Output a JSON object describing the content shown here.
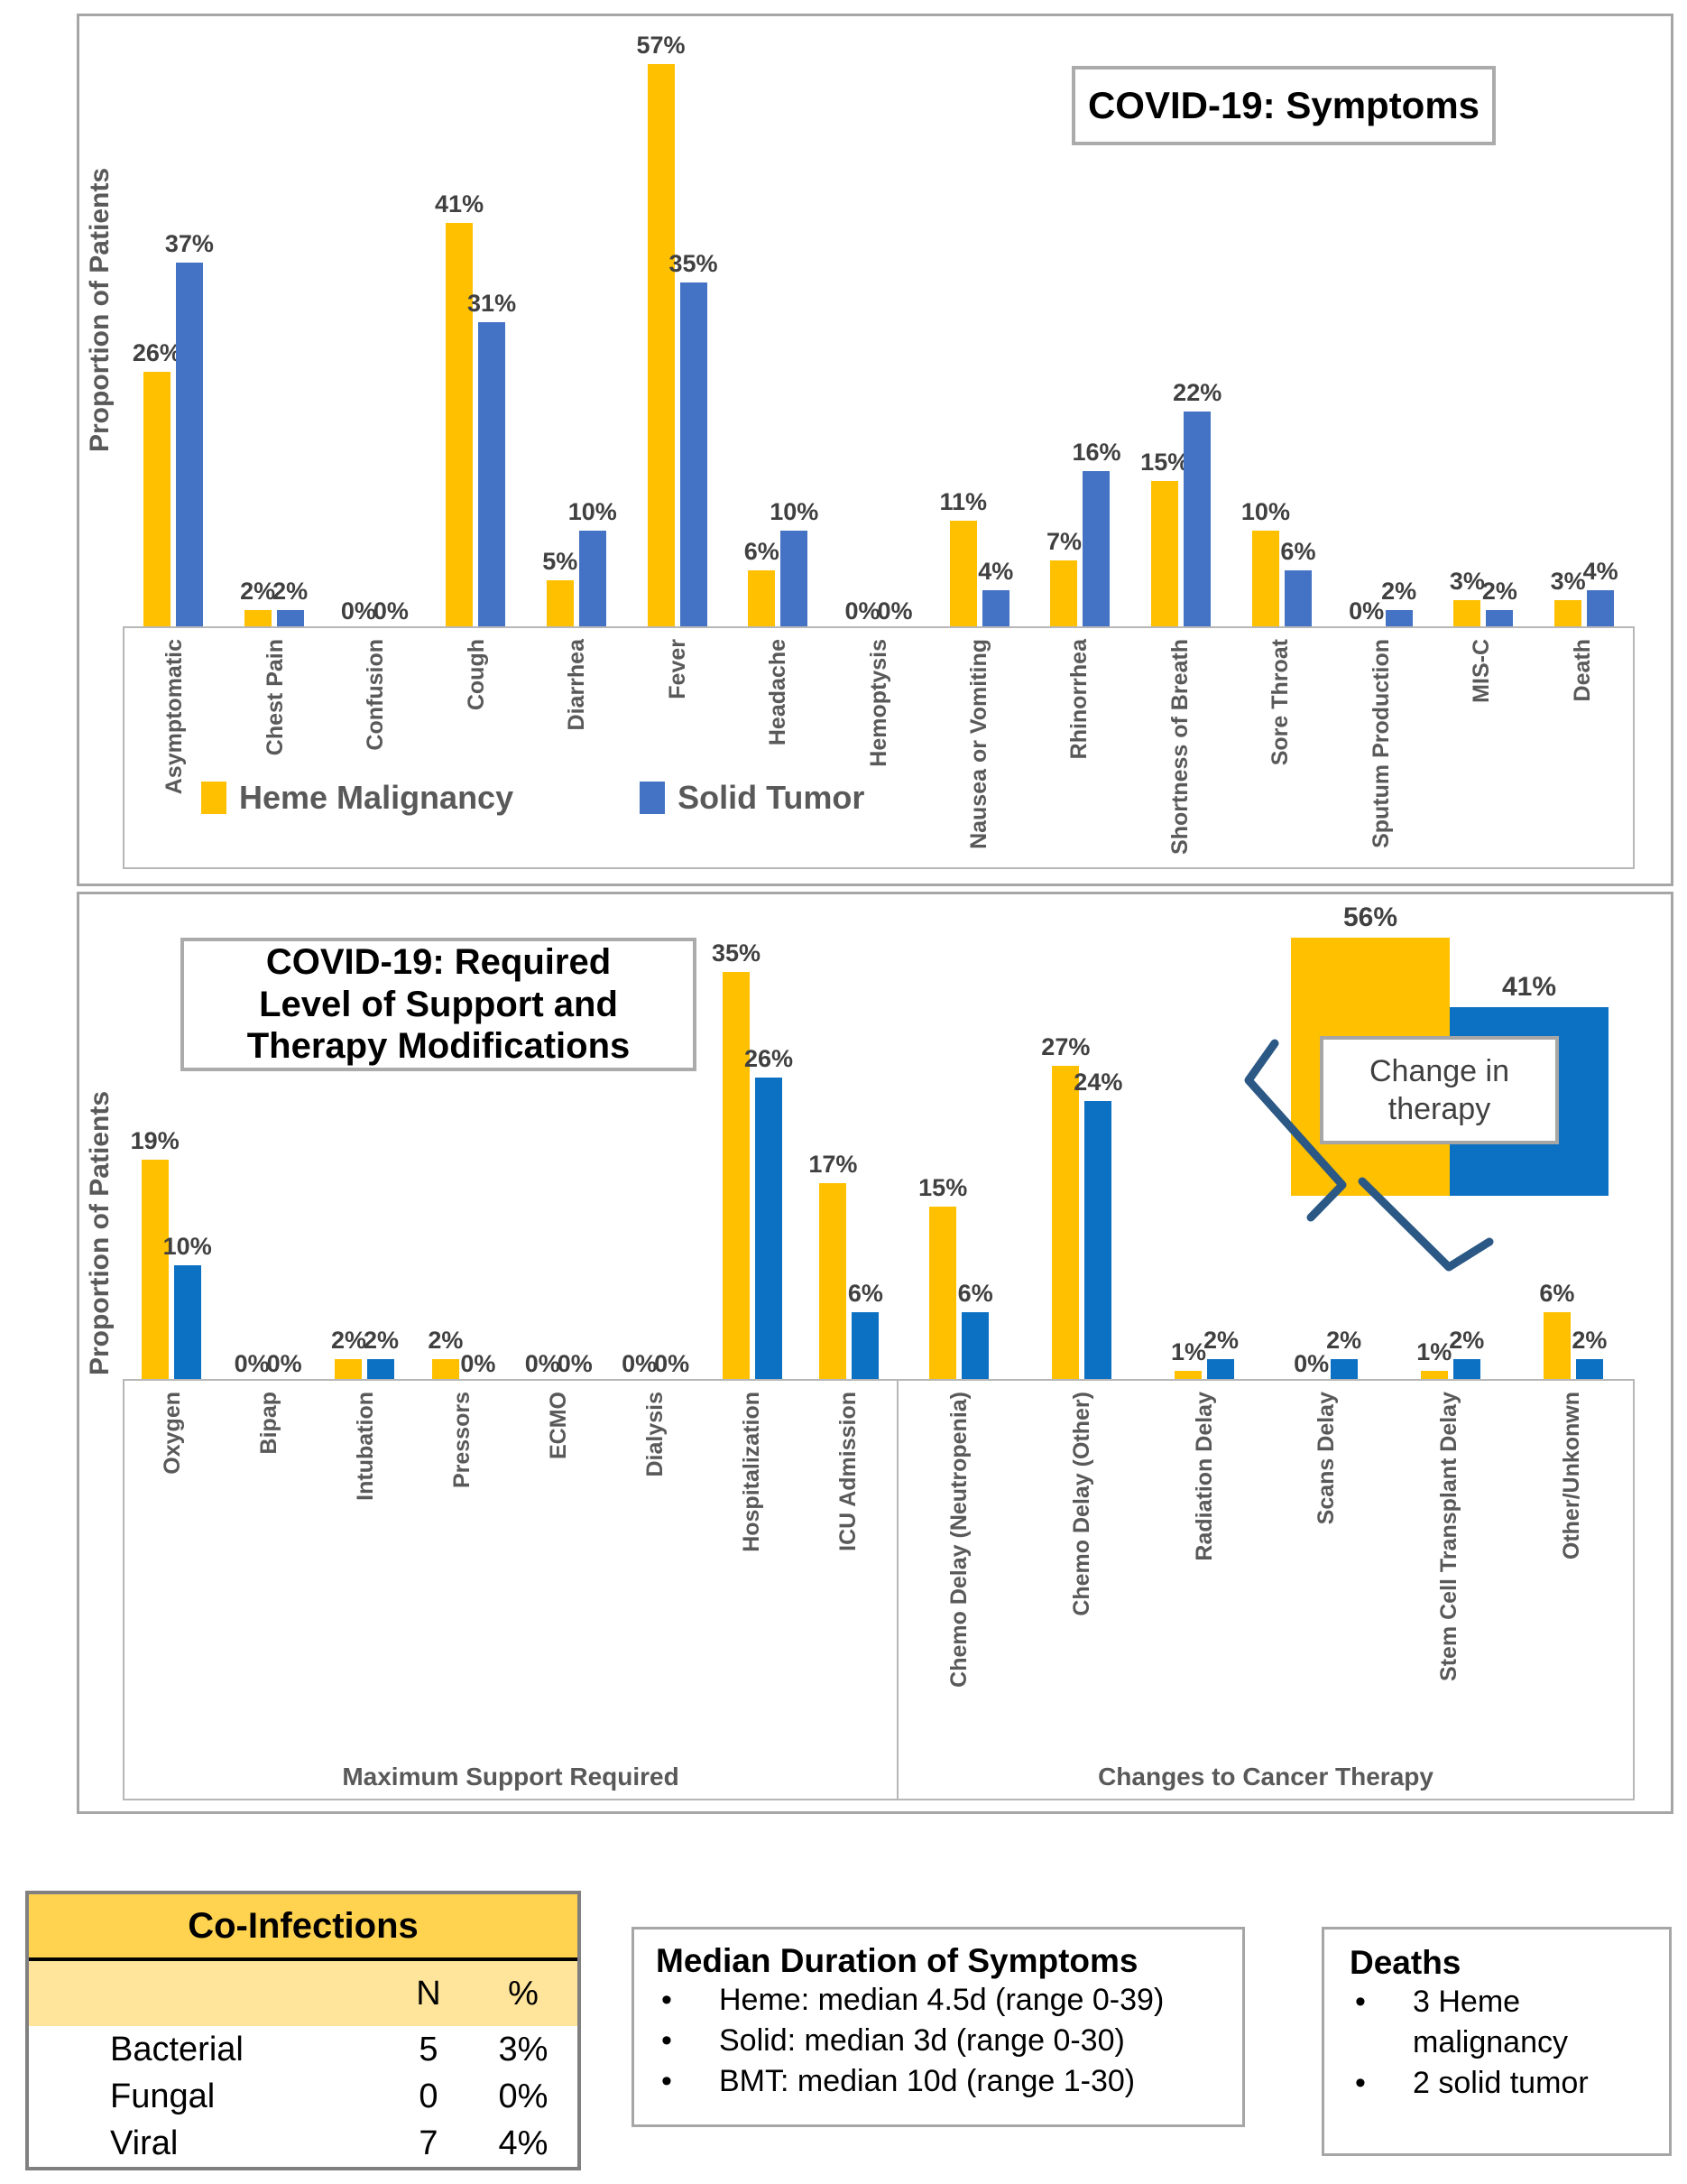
{
  "chart_data": [
    {
      "id": "symptoms",
      "type": "bar",
      "title": "COVID-19: Symptoms",
      "ylabel": "Proportion of Patients",
      "ylim": [
        0,
        60
      ],
      "grid": false,
      "legend_position": "inside-bottom-left",
      "categories": [
        "Asymptomatic",
        "Chest Pain",
        "Confusion",
        "Cough",
        "Diarrhea",
        "Fever",
        "Headache",
        "Hemoptysis",
        "Nausea or Vomiting",
        "Rhinorrhea",
        "Shortness of Breath",
        "Sore Throat",
        "Sputum Production",
        "MIS-C",
        "Death"
      ],
      "series": [
        {
          "name": "Heme Malignancy",
          "color": "#FFC000",
          "values": [
            26,
            2,
            0,
            41,
            5,
            57,
            6,
            0,
            11,
            7,
            15,
            10,
            0,
            3,
            3
          ]
        },
        {
          "name": "Solid Tumor",
          "color": "#4472C4",
          "values": [
            37,
            2,
            0,
            31,
            10,
            35,
            10,
            0,
            4,
            16,
            22,
            6,
            2,
            2,
            4
          ]
        }
      ]
    },
    {
      "id": "support",
      "type": "bar",
      "title": "COVID-19: Required Level of Support and Therapy Modifications",
      "ylabel": "Proportion of Patients",
      "ylim": [
        0,
        40
      ],
      "grid": false,
      "groups": [
        {
          "label": "Maximum Support Required",
          "span": 8
        },
        {
          "label": "Changes to Cancer Therapy",
          "span": 6
        }
      ],
      "categories": [
        "Oxygen",
        "Bipap",
        "Intubation",
        "Pressors",
        "ECMO",
        "Dialysis",
        "Hospitalization",
        "ICU Admission",
        "Chemo Delay (Neutropenia)",
        "Chemo Delay (Other)",
        "Radiation Delay",
        "Scans Delay",
        "Stem Cell Transplant Delay",
        "Other/Unkonwn"
      ],
      "series": [
        {
          "name": "Heme Malignancy",
          "color": "#FFC000",
          "values": [
            19,
            0,
            2,
            2,
            0,
            0,
            35,
            17,
            15,
            27,
            1,
            0,
            1,
            6
          ]
        },
        {
          "name": "Solid Tumor",
          "color": "#0C71C3",
          "values": [
            10,
            0,
            2,
            0,
            0,
            0,
            26,
            6,
            6,
            24,
            2,
            2,
            2,
            2
          ]
        }
      ],
      "inset": {
        "label": "Change in therapy",
        "series": [
          {
            "name": "Heme Malignancy",
            "color": "#FFC000",
            "value": 56
          },
          {
            "name": "Solid Tumor",
            "color": "#0C71C3",
            "value": 41
          }
        ]
      }
    }
  ],
  "co_infections": {
    "title": "Co-Infections",
    "columns": [
      "N",
      "%"
    ],
    "header_bg": "#FFD24F",
    "subheader_bg": "#FFE59B",
    "rows": [
      {
        "label": "Bacterial",
        "n": "5",
        "pct": "3%"
      },
      {
        "label": "Fungal",
        "n": "0",
        "pct": "0%"
      },
      {
        "label": "Viral",
        "n": "7",
        "pct": "4%"
      }
    ]
  },
  "median_duration": {
    "title": "Median Duration of Symptoms",
    "bullets": [
      "Heme: median 4.5d (range 0-39)",
      "Solid: median 3d (range 0-30)",
      "BMT: median 10d (range 1-30)"
    ]
  },
  "deaths": {
    "title": "Deaths",
    "bullets": [
      "3 Heme malignancy",
      "2 solid tumor"
    ]
  },
  "colors": {
    "heme": "#FFC000",
    "solid_top": "#4472C4",
    "solid_bottom": "#0C71C3",
    "brace": "#2B5884",
    "axis_gray": "#b7b7b7",
    "label_text": "#404040"
  }
}
